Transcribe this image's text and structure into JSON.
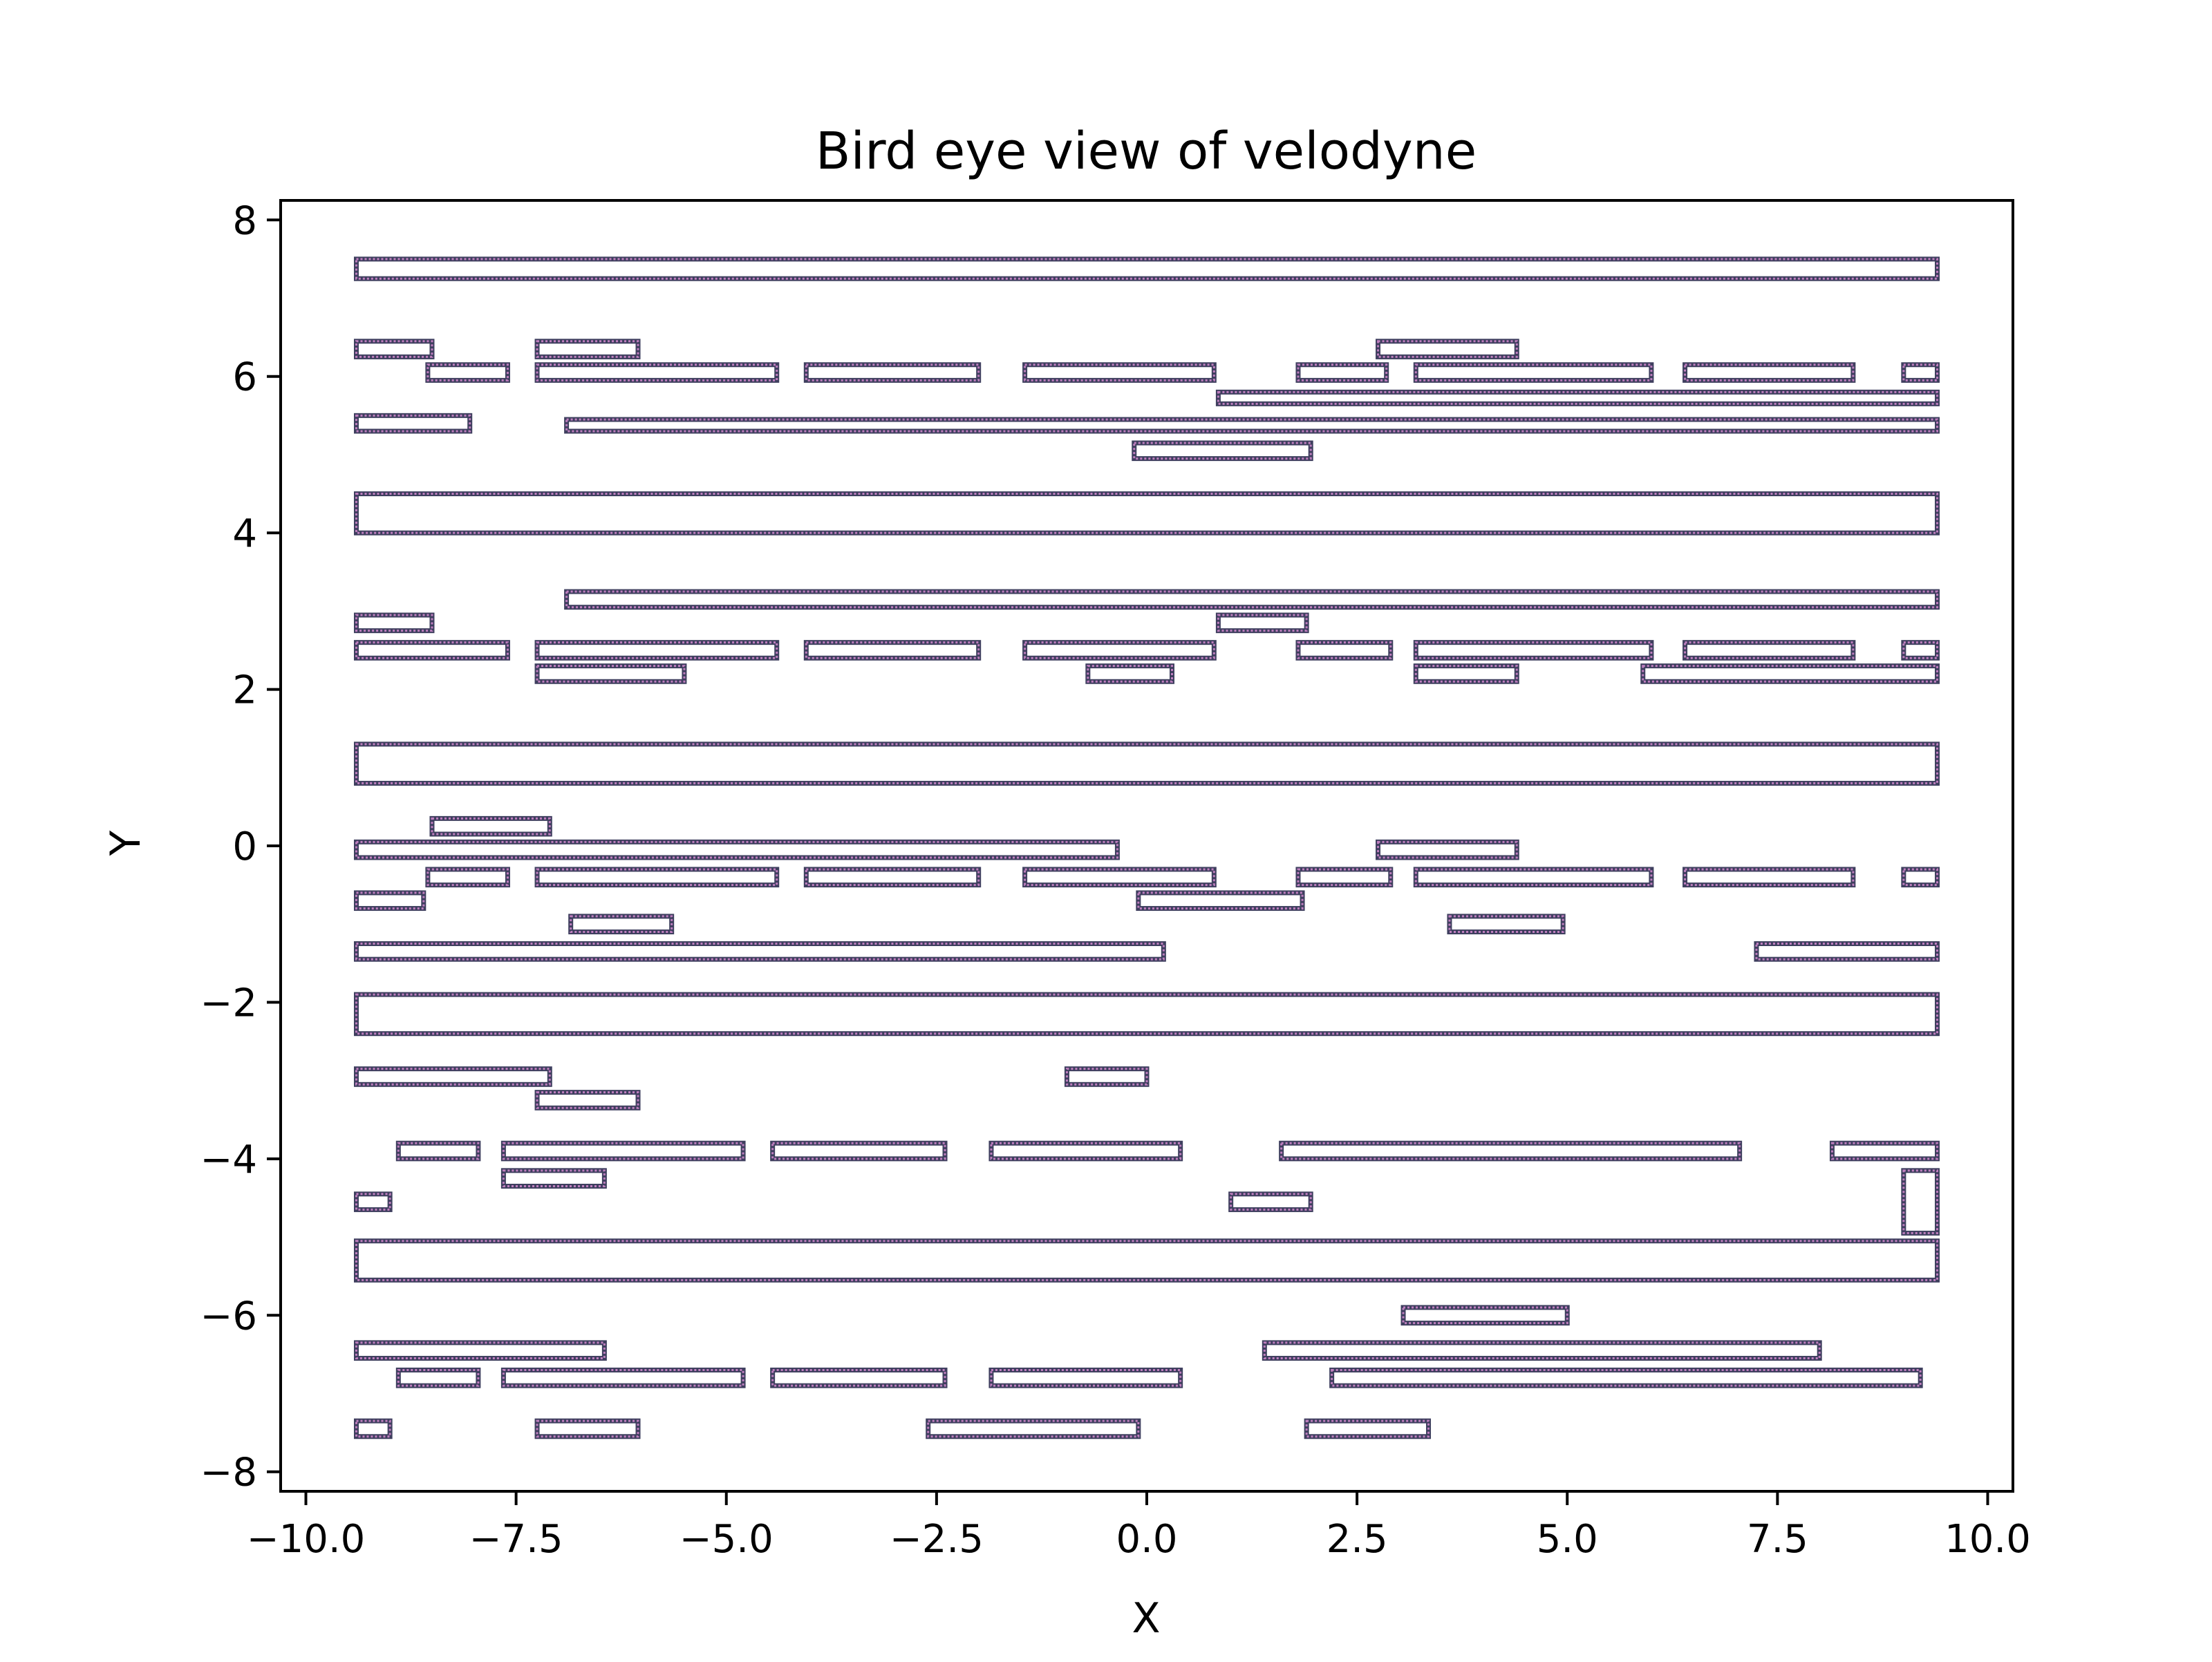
{
  "chart_data": {
    "type": "scatter",
    "title": "Bird eye view of velodyne",
    "xlabel": "X",
    "ylabel": "Y",
    "xlim": [
      -10.3,
      10.3
    ],
    "ylim": [
      -8.25,
      8.25
    ],
    "grid": false,
    "legend": "none",
    "x_ticks": [
      {
        "value": -10.0,
        "label": "−10.0"
      },
      {
        "value": -7.5,
        "label": "−7.5"
      },
      {
        "value": -5.0,
        "label": "−5.0"
      },
      {
        "value": -2.5,
        "label": "−2.5"
      },
      {
        "value": 0.0,
        "label": "0.0"
      },
      {
        "value": 2.5,
        "label": "2.5"
      },
      {
        "value": 5.0,
        "label": "5.0"
      },
      {
        "value": 7.5,
        "label": "7.5"
      },
      {
        "value": 10.0,
        "label": "10.0"
      }
    ],
    "y_ticks": [
      {
        "value": 8,
        "label": "8"
      },
      {
        "value": 6,
        "label": "6"
      },
      {
        "value": 4,
        "label": "4"
      },
      {
        "value": 2,
        "label": "2"
      },
      {
        "value": 0,
        "label": "0"
      },
      {
        "value": -2,
        "label": "−2"
      },
      {
        "value": -4,
        "label": "−4"
      },
      {
        "value": -6,
        "label": "−6"
      },
      {
        "value": -8,
        "label": "−8"
      }
    ],
    "series": [
      {
        "marker_color": "#bf7fbf",
        "edge_color": "#3f3f5f",
        "boxes": [
          [
            -9.4,
            7.25,
            9.4,
            7.5
          ],
          [
            -9.4,
            6.25,
            -8.5,
            6.45
          ],
          [
            -7.25,
            6.25,
            -6.05,
            6.45
          ],
          [
            2.75,
            6.25,
            4.4,
            6.45
          ],
          [
            -8.55,
            5.95,
            -7.6,
            6.15
          ],
          [
            -7.25,
            5.95,
            -4.4,
            6.15
          ],
          [
            -4.05,
            5.95,
            -2.0,
            6.15
          ],
          [
            -1.45,
            5.95,
            0.8,
            6.15
          ],
          [
            1.8,
            5.95,
            2.85,
            6.15
          ],
          [
            3.2,
            5.95,
            6.0,
            6.15
          ],
          [
            6.4,
            5.95,
            8.4,
            6.15
          ],
          [
            9.0,
            5.95,
            9.4,
            6.15
          ],
          [
            0.85,
            5.65,
            9.4,
            5.8
          ],
          [
            -9.4,
            5.3,
            -8.05,
            5.5
          ],
          [
            -6.9,
            5.3,
            9.4,
            5.45
          ],
          [
            -0.15,
            4.95,
            1.95,
            5.15
          ],
          [
            -9.4,
            4.0,
            9.4,
            4.5
          ],
          [
            -6.9,
            3.05,
            9.4,
            3.25
          ],
          [
            -9.4,
            2.75,
            -8.5,
            2.95
          ],
          [
            0.85,
            2.75,
            1.9,
            2.95
          ],
          [
            -9.4,
            2.4,
            -7.6,
            2.6
          ],
          [
            -7.25,
            2.4,
            -4.4,
            2.6
          ],
          [
            -4.05,
            2.4,
            -2.0,
            2.6
          ],
          [
            -1.45,
            2.4,
            0.8,
            2.6
          ],
          [
            1.8,
            2.4,
            2.9,
            2.6
          ],
          [
            3.2,
            2.4,
            6.0,
            2.6
          ],
          [
            6.4,
            2.4,
            8.4,
            2.6
          ],
          [
            9.0,
            2.4,
            9.4,
            2.6
          ],
          [
            -7.25,
            2.1,
            -5.5,
            2.3
          ],
          [
            -0.7,
            2.1,
            0.3,
            2.3
          ],
          [
            3.2,
            2.1,
            4.4,
            2.3
          ],
          [
            5.9,
            2.1,
            9.4,
            2.3
          ],
          [
            -9.4,
            0.8,
            9.4,
            1.3
          ],
          [
            -8.5,
            0.15,
            -7.1,
            0.35
          ],
          [
            -9.4,
            -0.15,
            -0.35,
            0.05
          ],
          [
            2.75,
            -0.15,
            4.4,
            0.05
          ],
          [
            -8.55,
            -0.5,
            -7.6,
            -0.3
          ],
          [
            -7.25,
            -0.5,
            -4.4,
            -0.3
          ],
          [
            -4.05,
            -0.5,
            -2.0,
            -0.3
          ],
          [
            -1.45,
            -0.5,
            0.8,
            -0.3
          ],
          [
            1.8,
            -0.5,
            2.9,
            -0.3
          ],
          [
            3.2,
            -0.5,
            6.0,
            -0.3
          ],
          [
            6.4,
            -0.5,
            8.4,
            -0.3
          ],
          [
            9.0,
            -0.5,
            9.4,
            -0.3
          ],
          [
            -9.4,
            -0.8,
            -8.6,
            -0.6
          ],
          [
            -0.1,
            -0.8,
            1.85,
            -0.6
          ],
          [
            -6.85,
            -1.1,
            -5.65,
            -0.9
          ],
          [
            3.6,
            -1.1,
            4.95,
            -0.9
          ],
          [
            -9.4,
            -1.45,
            0.2,
            -1.25
          ],
          [
            7.25,
            -1.45,
            9.4,
            -1.25
          ],
          [
            -9.4,
            -2.4,
            9.4,
            -1.9
          ],
          [
            -9.4,
            -3.05,
            -7.1,
            -2.85
          ],
          [
            -0.95,
            -3.05,
            0.0,
            -2.85
          ],
          [
            -7.25,
            -3.35,
            -6.05,
            -3.15
          ],
          [
            -8.9,
            -4.0,
            -7.95,
            -3.8
          ],
          [
            -7.65,
            -4.0,
            -4.8,
            -3.8
          ],
          [
            -4.45,
            -4.0,
            -2.4,
            -3.8
          ],
          [
            -1.85,
            -4.0,
            0.4,
            -3.8
          ],
          [
            1.6,
            -4.0,
            7.05,
            -3.8
          ],
          [
            8.15,
            -4.0,
            9.4,
            -3.8
          ],
          [
            -7.65,
            -4.35,
            -6.45,
            -4.15
          ],
          [
            9.0,
            -4.95,
            9.4,
            -4.15
          ],
          [
            -9.4,
            -4.65,
            -9.0,
            -4.45
          ],
          [
            1.0,
            -4.65,
            1.95,
            -4.45
          ],
          [
            -9.4,
            -5.55,
            9.4,
            -5.05
          ],
          [
            3.05,
            -6.1,
            5.0,
            -5.9
          ],
          [
            -9.4,
            -6.55,
            -6.45,
            -6.35
          ],
          [
            1.4,
            -6.55,
            8.0,
            -6.35
          ],
          [
            -8.9,
            -6.9,
            -7.95,
            -6.7
          ],
          [
            -7.65,
            -6.9,
            -4.8,
            -6.7
          ],
          [
            -4.45,
            -6.9,
            -2.4,
            -6.7
          ],
          [
            -1.85,
            -6.9,
            0.4,
            -6.7
          ],
          [
            2.2,
            -6.9,
            9.2,
            -6.7
          ],
          [
            -9.4,
            -7.55,
            -9.0,
            -7.35
          ],
          [
            -7.25,
            -7.55,
            -6.05,
            -7.35
          ],
          [
            -2.6,
            -7.55,
            -0.1,
            -7.35
          ],
          [
            1.9,
            -7.55,
            3.35,
            -7.35
          ]
        ]
      }
    ]
  }
}
